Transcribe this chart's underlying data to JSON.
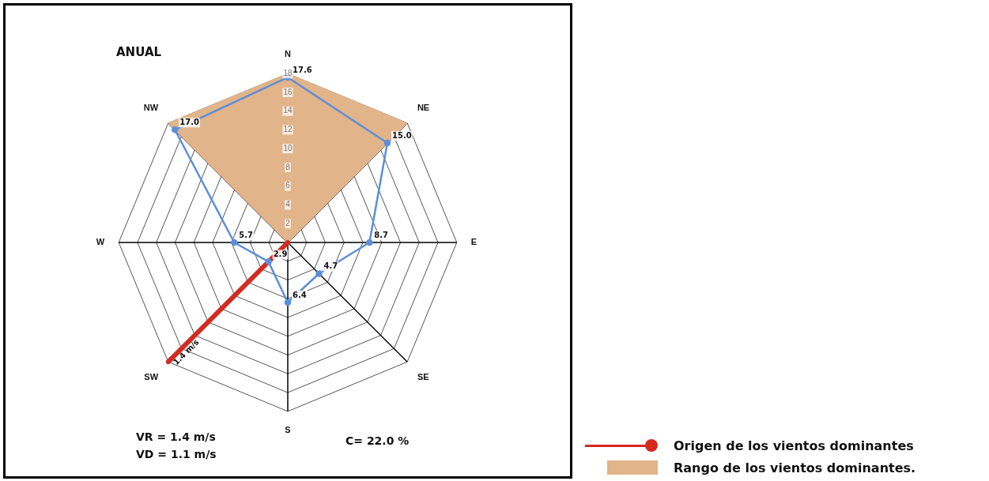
{
  "chart_data": {
    "type": "radar",
    "title": "ANUAL",
    "categories": [
      "N",
      "NE",
      "E",
      "SE",
      "S",
      "SW",
      "W",
      "NW"
    ],
    "series": [
      {
        "name": "Rango de los vientos dominantes.",
        "color": "#e2b489",
        "values": [
          18,
          18,
          0,
          0,
          0,
          0,
          0,
          18
        ]
      },
      {
        "name": "Origen de los vientos dominantes",
        "color": "#d42a20",
        "values": [
          0,
          0,
          0,
          0,
          0,
          18,
          0,
          0
        ]
      },
      {
        "color": "#5b8fd9",
        "values": [
          17.6,
          15.0,
          8.7,
          4.7,
          6.4,
          2.9,
          5.7,
          17.0
        ],
        "value_labels": [
          "17.6",
          "15.0",
          "8.7",
          "4.7",
          "6.4",
          "2.9",
          "5.7",
          "17.0"
        ]
      }
    ],
    "ylim": [
      0,
      18
    ],
    "yticks": [
      2,
      4,
      6,
      8,
      10,
      12,
      14,
      16,
      18
    ],
    "grid": true,
    "legend": "bottom right",
    "marker": "circle",
    "annotations": [
      {
        "text": "1.4 m/s",
        "x": "SW"
      },
      "VR = 1.4 m/s",
      "VD = 1.1 m/s",
      "C= 22.0 %"
    ]
  }
}
